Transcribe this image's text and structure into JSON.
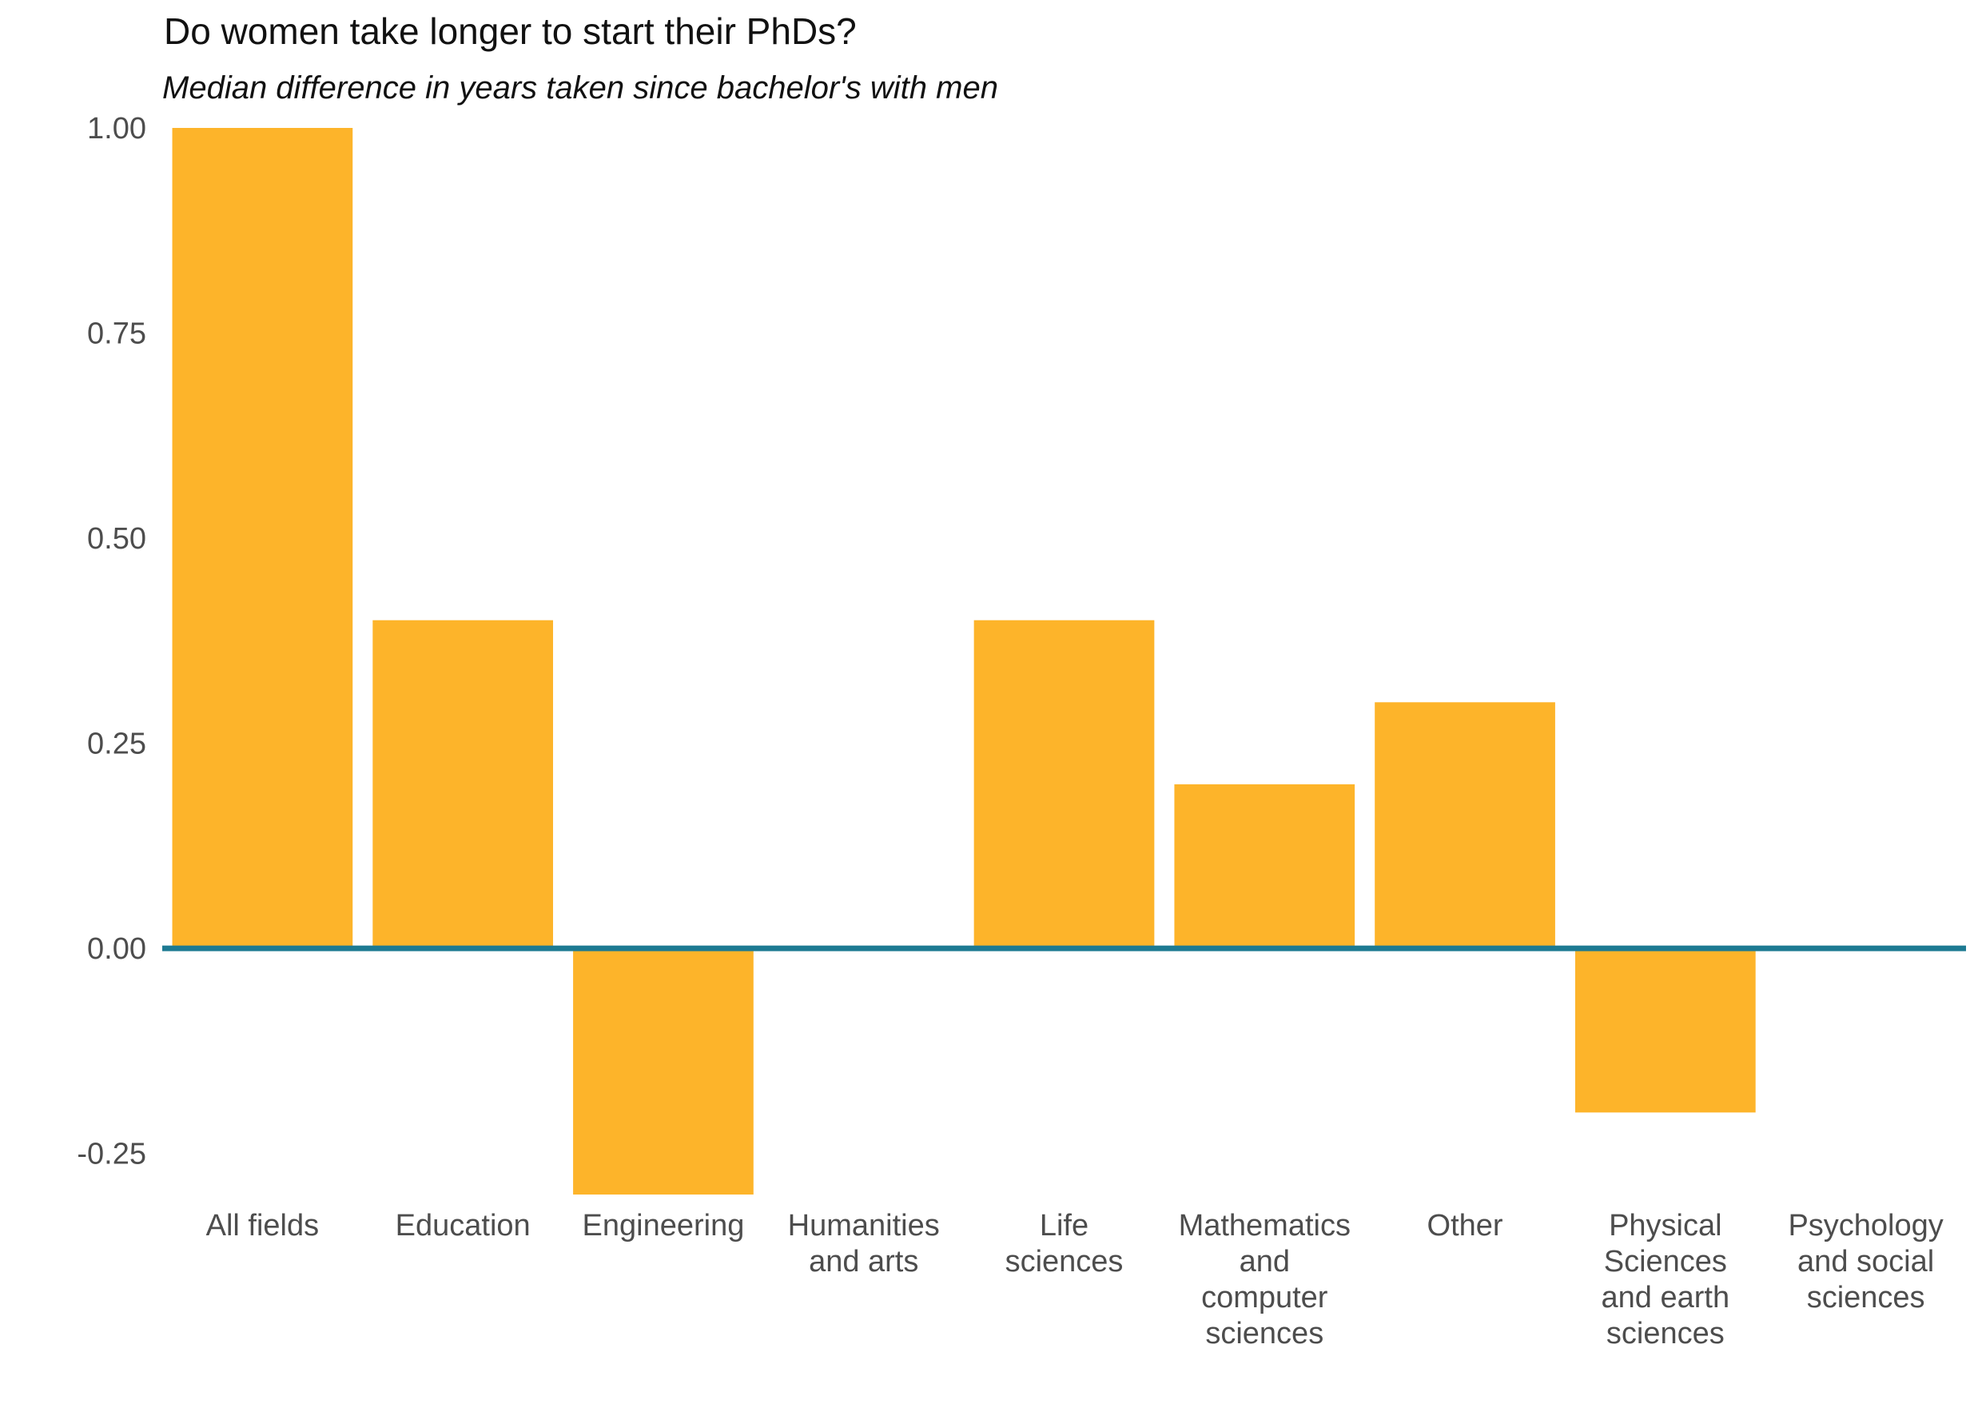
{
  "chart_data": {
    "type": "bar",
    "title": "Do women take longer to start their PhDs?",
    "subtitle": "Median difference in years taken since bachelor's with men",
    "xlabel": "",
    "ylabel": "",
    "categories": [
      "All fields",
      "Education",
      "Engineering",
      "Humanities and arts",
      "Life sciences",
      "Mathematics and computer sciences",
      "Other",
      "Physical Sciences and earth sciences",
      "Psychology and social sciences"
    ],
    "category_labels": [
      [
        "All fields"
      ],
      [
        "Education"
      ],
      [
        "Engineering"
      ],
      [
        "Humanities",
        "and arts"
      ],
      [
        "Life",
        "sciences"
      ],
      [
        "Mathematics",
        "and",
        "computer",
        "sciences"
      ],
      [
        "Other"
      ],
      [
        "Physical",
        "Sciences",
        "and earth",
        "sciences"
      ],
      [
        "Psychology",
        "and social",
        "sciences"
      ]
    ],
    "values": [
      1.0,
      0.4,
      -0.3,
      0.0,
      0.4,
      0.2,
      0.3,
      -0.2,
      0.0
    ],
    "ylim": [
      -0.3,
      1.0
    ],
    "yticks": [
      1.0,
      0.75,
      0.5,
      0.25,
      0.0,
      -0.25
    ],
    "ytick_labels": [
      "1.00",
      "0.75",
      "0.50",
      "0.25",
      "0.00",
      "-0.25"
    ],
    "grid": false,
    "legend": "none",
    "colors": {
      "bar": "#FDB42A",
      "zero_line": "#1D7A92",
      "title": "#111111",
      "tick_label": "#4D4D4D"
    }
  }
}
